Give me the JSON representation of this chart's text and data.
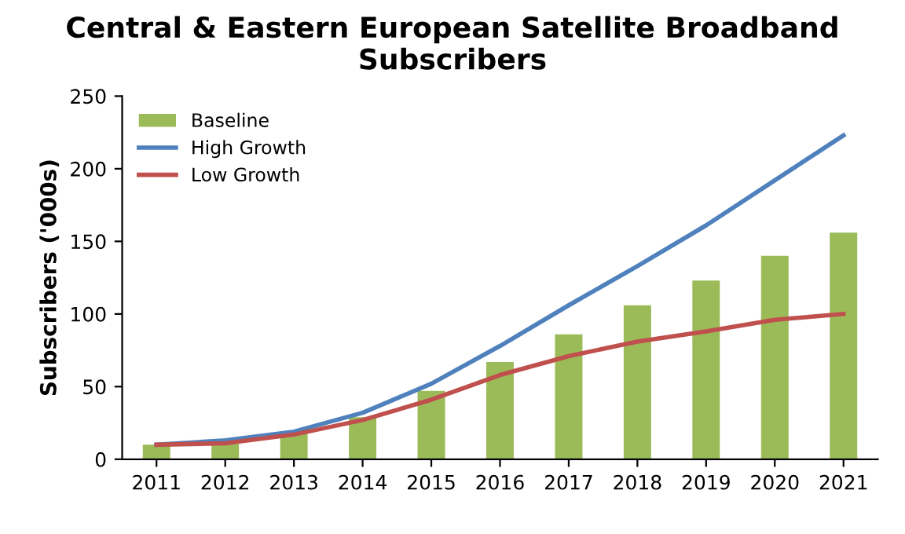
{
  "chart_data": {
    "type": "bar",
    "title": "Central & Eastern European Satellite Broadband Subscribers",
    "ylabel": "Subscribers ('000s)",
    "categories": [
      "2011",
      "2012",
      "2013",
      "2014",
      "2015",
      "2016",
      "2017",
      "2018",
      "2019",
      "2020",
      "2021"
    ],
    "series": [
      {
        "name": "Baseline",
        "color": "#9bbb59",
        "values": [
          10,
          12,
          18,
          29,
          47,
          67,
          86,
          106,
          123,
          140,
          156
        ]
      },
      {
        "name": "High Growth",
        "type": "line",
        "color": "#4f81bd",
        "values": [
          10,
          13,
          19,
          32,
          52,
          78,
          106,
          133,
          161,
          192,
          223
        ]
      },
      {
        "name": "Low Growth",
        "type": "line",
        "color": "#c0504d",
        "values": [
          10,
          11,
          17,
          27,
          41,
          58,
          71,
          81,
          88,
          96,
          100
        ]
      }
    ],
    "ylim": [
      0,
      250
    ],
    "yticks": [
      0,
      50,
      100,
      150,
      200,
      250
    ],
    "grid": false,
    "legend": "top left",
    "marker": "none"
  }
}
